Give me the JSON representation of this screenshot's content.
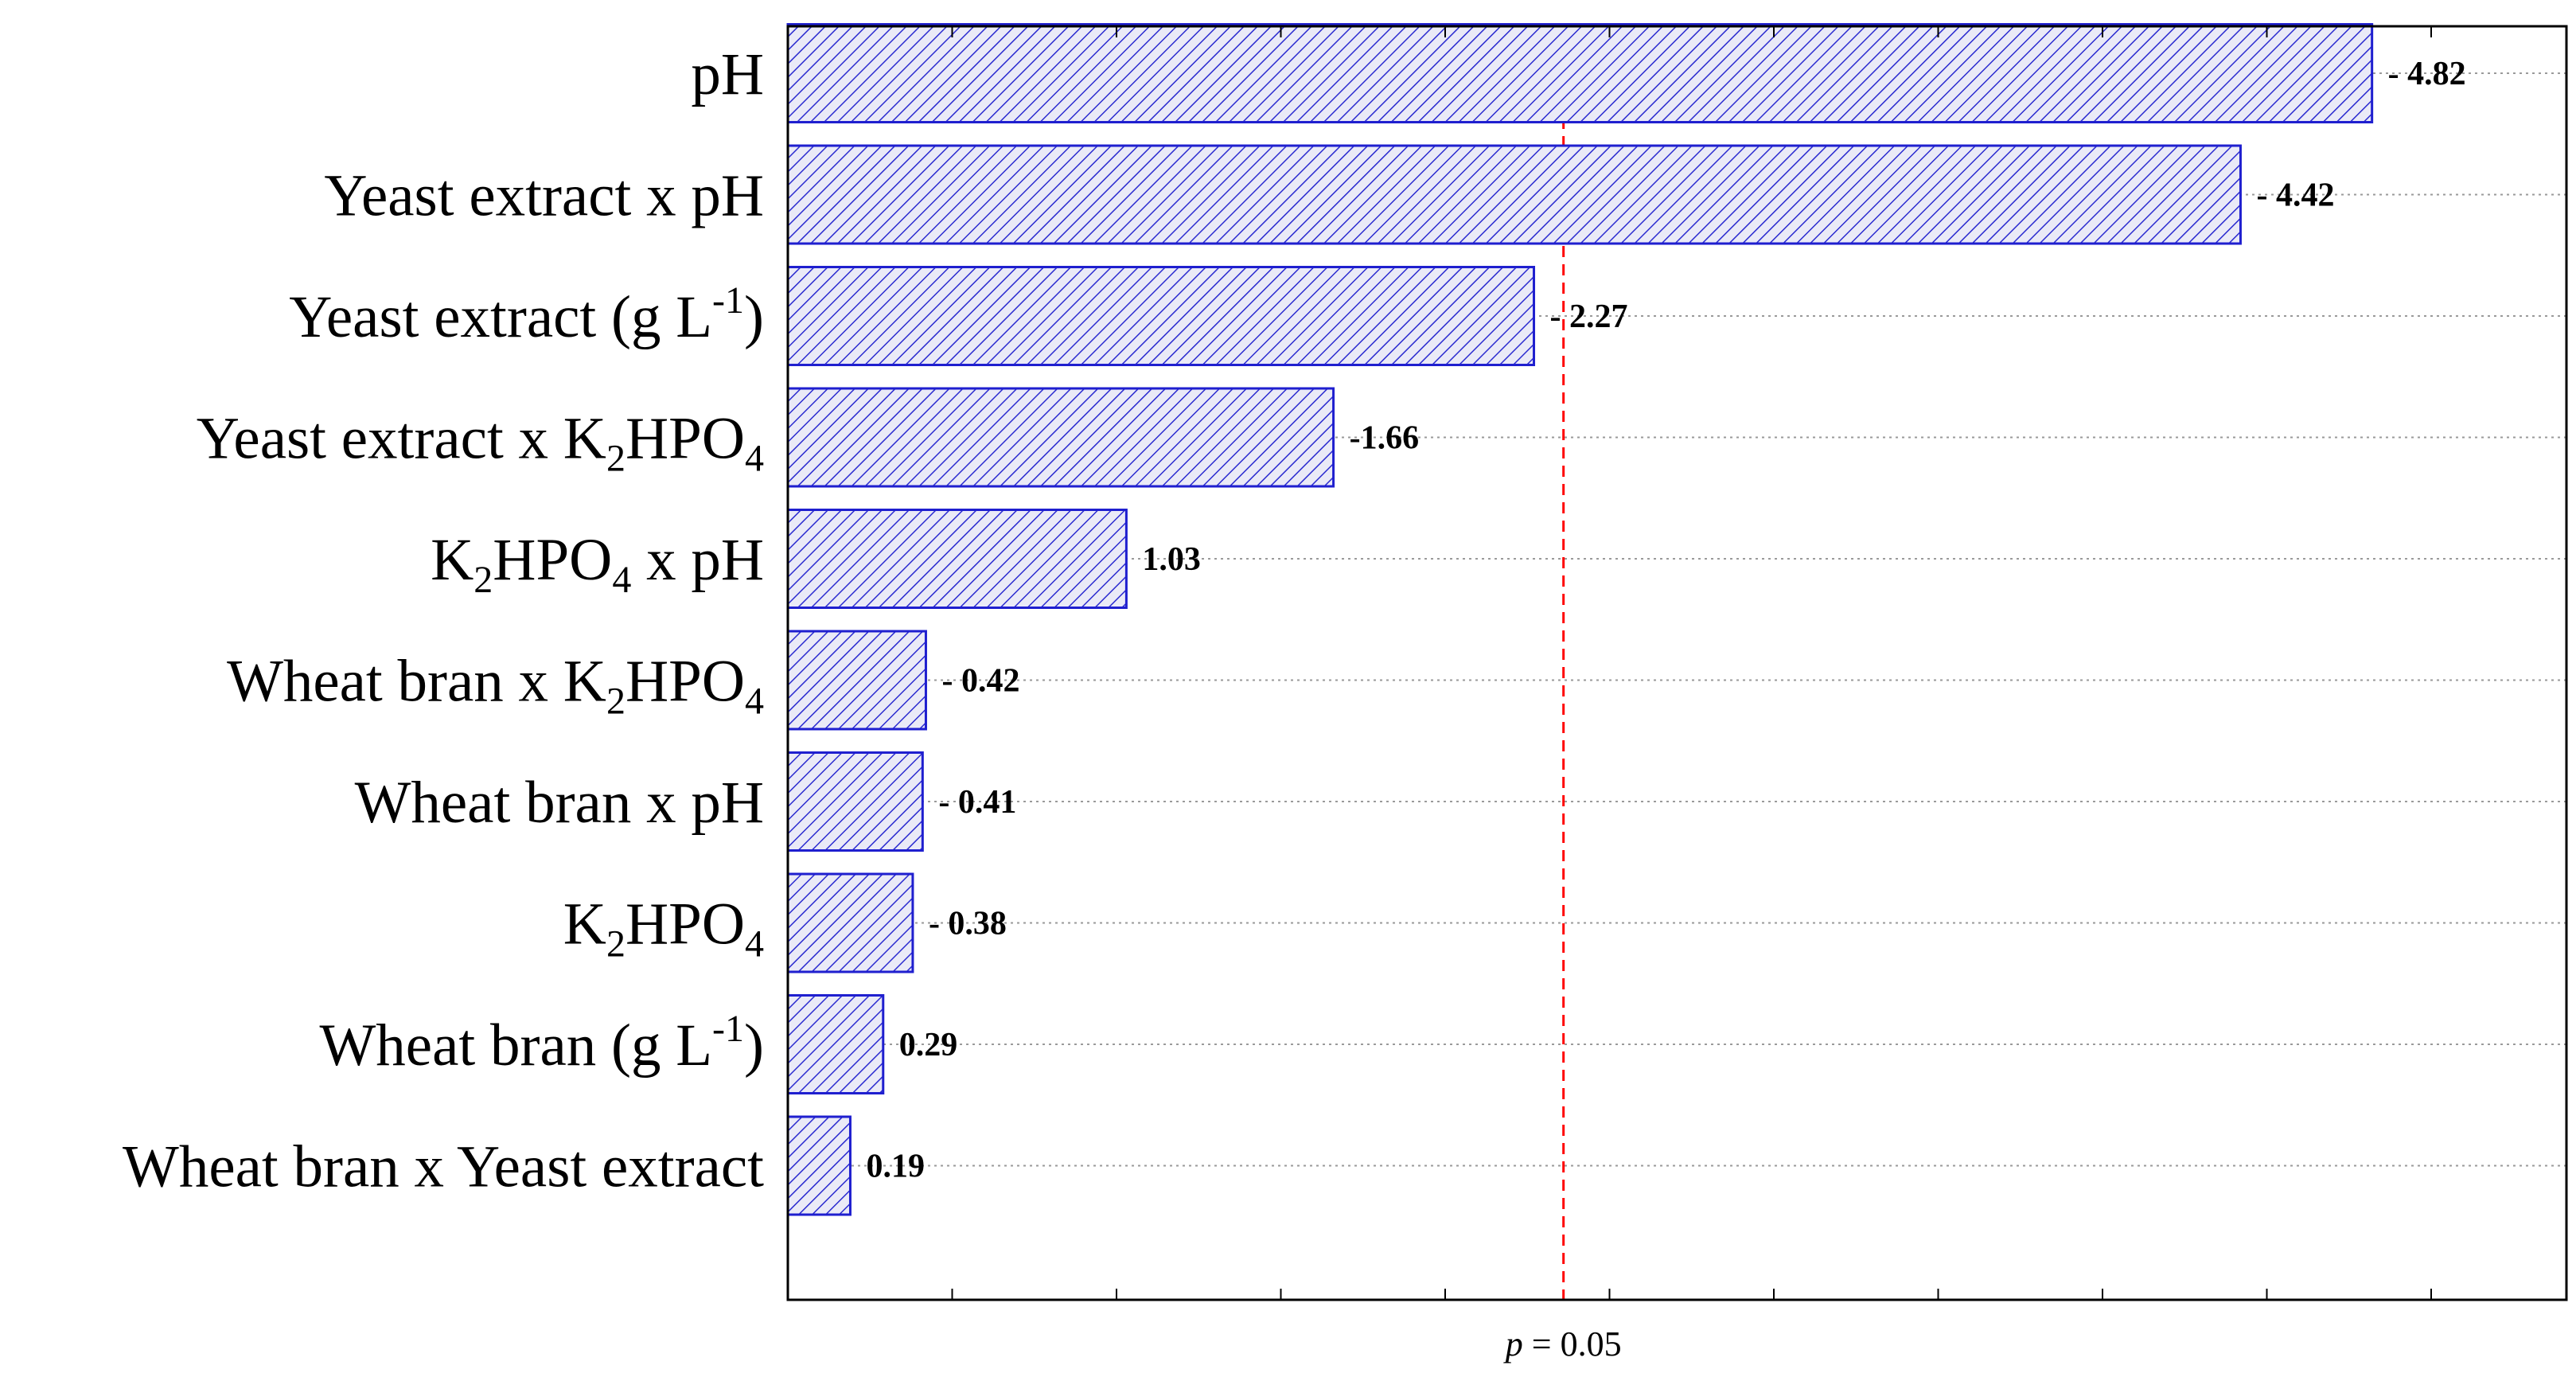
{
  "chart_data": {
    "type": "bar",
    "orientation": "horizontal",
    "title": "",
    "xlabel": "",
    "ylabel": "",
    "xlim": [
      -0.5,
      5.5
    ],
    "grid": true,
    "categories": [
      {
        "parts": [
          {
            "t": "pH"
          }
        ]
      },
      {
        "parts": [
          {
            "t": "Yeast extract x pH"
          }
        ]
      },
      {
        "parts": [
          {
            "t": "Yeast extract (g L"
          },
          {
            "t": "-1",
            "sup": true
          },
          {
            "t": ")"
          }
        ]
      },
      {
        "parts": [
          {
            "t": "Yeast extract x K"
          },
          {
            "t": "2",
            "sub": true
          },
          {
            "t": "HPO"
          },
          {
            "t": "4",
            "sub": true
          }
        ]
      },
      {
        "parts": [
          {
            "t": "K"
          },
          {
            "t": "2",
            "sub": true
          },
          {
            "t": "HPO"
          },
          {
            "t": "4",
            "sub": true
          },
          {
            "t": " x pH"
          }
        ]
      },
      {
        "parts": [
          {
            "t": "Wheat bran x K"
          },
          {
            "t": "2",
            "sub": true
          },
          {
            "t": "HPO"
          },
          {
            "t": "4",
            "sub": true
          }
        ]
      },
      {
        "parts": [
          {
            "t": "Wheat bran x pH"
          }
        ]
      },
      {
        "parts": [
          {
            "t": "K"
          },
          {
            "t": "2",
            "sub": true
          },
          {
            "t": "HPO"
          },
          {
            "t": "4",
            "sub": true
          }
        ]
      },
      {
        "parts": [
          {
            "t": "Wheat bran (g L"
          },
          {
            "t": "-1",
            "sup": true
          },
          {
            "t": ")"
          }
        ]
      },
      {
        "parts": [
          {
            "t": "Wheat bran x Yeast extract"
          }
        ]
      }
    ],
    "values": [
      4.82,
      4.42,
      2.27,
      1.66,
      1.03,
      0.42,
      0.41,
      0.38,
      0.29,
      0.19
    ],
    "signed_values": [
      -4.82,
      -4.42,
      -2.27,
      -1.66,
      1.03,
      -0.42,
      -0.41,
      -0.38,
      0.29,
      0.19
    ],
    "value_labels": [
      "- 4.82",
      "- 4.42",
      "- 2.27",
      "-1.66",
      "1.03",
      "- 0.42",
      "- 0.41",
      "- 0.38",
      "0.29",
      "0.19"
    ],
    "threshold": {
      "value": 2.36,
      "label_italic": "p",
      "label_rest": " = 0.05",
      "color": "#ff0000"
    },
    "bar_color": "#1f1fcf",
    "bar_fill": "#e9e9f6"
  }
}
